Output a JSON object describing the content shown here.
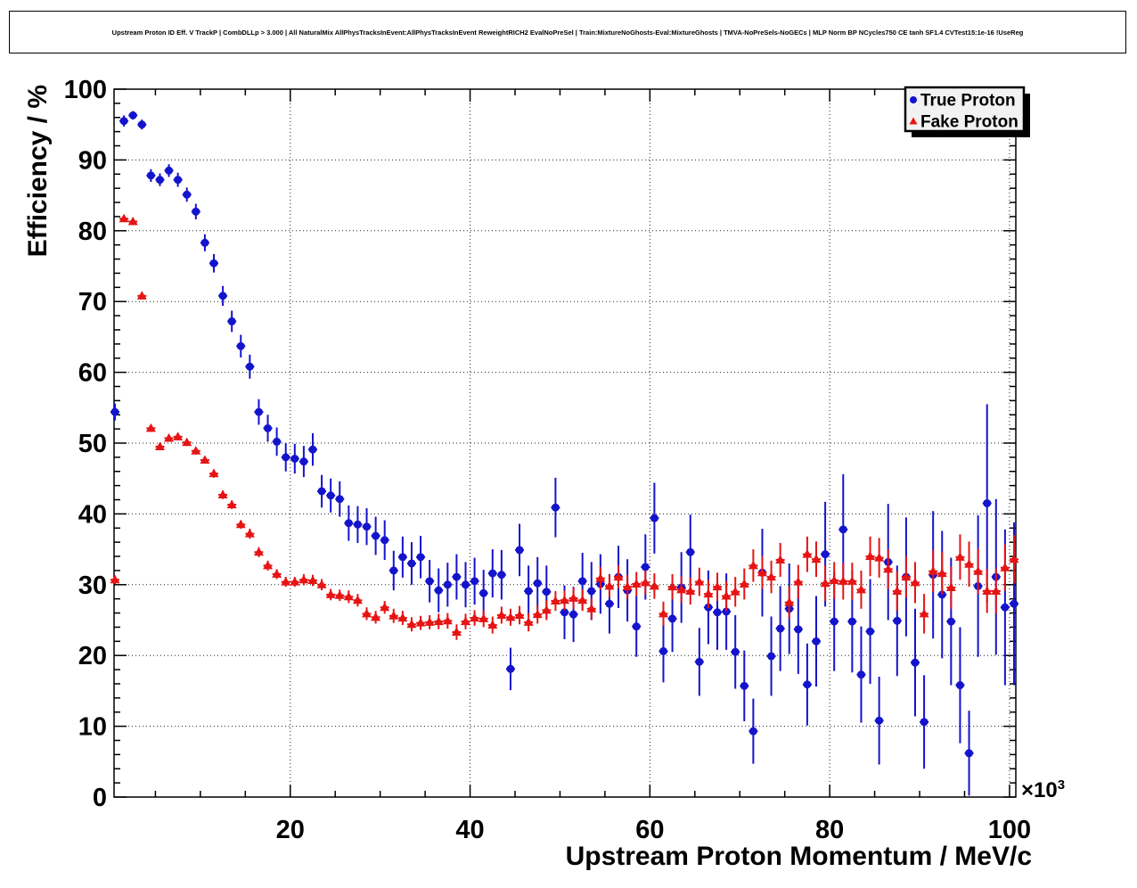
{
  "title": "Upstream Proton ID Eff. V TrackP | CombDLLp > 3.000 | All NaturalMix AllPhysTracksInEvent:AllPhysTracksInEvent ReweightRICH2 EvalNoPreSel | Train:MixtureNoGhosts-Eval:MixtureGhosts | TMVA-NoPreSels-NoGECs | MLP Norm BP NCycles750 CE tanh SF1.4 CVTest15:1e-16 !UseReg",
  "colors": {
    "true_proton": "#1414cc",
    "fake_proton": "#e61414",
    "frame": "#000000",
    "legend_bg": "#f2f2f2",
    "legend_shadow": "#000000",
    "background": "#ffffff"
  },
  "chart_data": {
    "type": "scatter",
    "title": "Upstream Proton ID Eff. V TrackP | CombDLLp > 3.000 | All NaturalMix AllPhysTracksInEvent:AllPhysTracksInEvent ReweightRICH2 EvalNoPreSel | Train:MixtureNoGhosts-Eval:MixtureGhosts | TMVA-NoPreSels-NoGECs | MLP Norm BP NCycles750 CE tanh SF1.4 CVTest15:1e-16 !UseReg",
    "xlabel": "Upstream Proton Momentum / MeV/c",
    "ylabel": "Efficiency / %",
    "x_axis_exponent": {
      "base": "×10",
      "exp": "3"
    },
    "xlim": [
      0.4,
      100.7
    ],
    "ylim": [
      0,
      100
    ],
    "xticks": [
      20,
      40,
      60,
      80,
      100
    ],
    "x_minor_step": 5,
    "yticks": [
      0,
      10,
      20,
      30,
      40,
      50,
      60,
      70,
      80,
      90,
      100
    ],
    "y_minor_step": 2,
    "grid": true,
    "grid_style": "dotted",
    "legend_position": "top-right",
    "series": [
      {
        "name": "True Proton",
        "marker": "circle",
        "color": "#1414cc",
        "points": [
          [
            0.5,
            54.4,
            1.2
          ],
          [
            1.5,
            95.5,
            0.8
          ],
          [
            2.5,
            96.3,
            0.6
          ],
          [
            3.5,
            95.0,
            0.7
          ],
          [
            4.5,
            87.8,
            0.9
          ],
          [
            5.5,
            87.2,
            0.9
          ],
          [
            6.5,
            88.5,
            0.9
          ],
          [
            7.5,
            87.2,
            1.0
          ],
          [
            8.5,
            85.1,
            1.0
          ],
          [
            9.5,
            82.7,
            1.1
          ],
          [
            10.5,
            78.3,
            1.2
          ],
          [
            11.5,
            75.4,
            1.3
          ],
          [
            12.5,
            70.8,
            1.4
          ],
          [
            13.5,
            67.2,
            1.5
          ],
          [
            14.5,
            63.7,
            1.6
          ],
          [
            15.5,
            60.8,
            1.7
          ],
          [
            16.5,
            54.4,
            1.8
          ],
          [
            17.5,
            52.1,
            1.9
          ],
          [
            18.5,
            50.2,
            2.0
          ],
          [
            19.5,
            48.0,
            2.0
          ],
          [
            20.5,
            47.8,
            2.1
          ],
          [
            21.5,
            47.4,
            2.2
          ],
          [
            22.5,
            49.1,
            2.3
          ],
          [
            23.5,
            43.2,
            2.3
          ],
          [
            24.5,
            42.6,
            2.4
          ],
          [
            25.5,
            42.1,
            2.5
          ],
          [
            26.5,
            38.7,
            2.5
          ],
          [
            27.5,
            38.5,
            2.6
          ],
          [
            28.5,
            38.2,
            2.6
          ],
          [
            29.5,
            36.9,
            2.7
          ],
          [
            30.5,
            36.3,
            2.8
          ],
          [
            31.5,
            32.0,
            2.8
          ],
          [
            32.5,
            33.9,
            2.9
          ],
          [
            33.5,
            33.0,
            3.0
          ],
          [
            34.5,
            33.9,
            3.0
          ],
          [
            35.5,
            30.5,
            3.0
          ],
          [
            36.5,
            29.2,
            3.1
          ],
          [
            37.5,
            30.0,
            3.1
          ],
          [
            38.5,
            31.1,
            3.2
          ],
          [
            39.5,
            30.0,
            3.2
          ],
          [
            40.5,
            30.5,
            3.3
          ],
          [
            41.5,
            28.8,
            3.3
          ],
          [
            42.5,
            31.6,
            3.4
          ],
          [
            43.5,
            31.4,
            3.5
          ],
          [
            44.5,
            18.1,
            3.0
          ],
          [
            45.5,
            34.9,
            3.7
          ],
          [
            46.5,
            29.1,
            3.6
          ],
          [
            47.5,
            30.2,
            3.7
          ],
          [
            48.5,
            29.0,
            3.7
          ],
          [
            49.5,
            40.9,
            4.2
          ],
          [
            50.5,
            26.1,
            3.8
          ],
          [
            51.5,
            25.8,
            3.9
          ],
          [
            52.5,
            30.5,
            4.0
          ],
          [
            53.5,
            29.1,
            4.1
          ],
          [
            54.5,
            30.1,
            4.2
          ],
          [
            55.5,
            27.3,
            4.2
          ],
          [
            56.5,
            31.1,
            4.4
          ],
          [
            57.5,
            29.2,
            4.4
          ],
          [
            58.5,
            24.1,
            4.3
          ],
          [
            59.5,
            32.5,
            4.6
          ],
          [
            60.5,
            39.4,
            5.0
          ],
          [
            61.5,
            20.6,
            4.4
          ],
          [
            62.5,
            25.2,
            4.7
          ],
          [
            63.5,
            29.6,
            5.0
          ],
          [
            64.5,
            34.6,
            5.3
          ],
          [
            65.5,
            19.1,
            4.8
          ],
          [
            66.5,
            26.8,
            5.2
          ],
          [
            67.5,
            26.1,
            5.3
          ],
          [
            68.5,
            26.2,
            5.4
          ],
          [
            69.5,
            20.5,
            5.2
          ],
          [
            70.5,
            15.7,
            5.0
          ],
          [
            71.5,
            9.3,
            4.6
          ],
          [
            72.5,
            31.7,
            6.2
          ],
          [
            73.5,
            19.9,
            5.6
          ],
          [
            74.5,
            23.8,
            6.0
          ],
          [
            75.5,
            26.6,
            6.4
          ],
          [
            76.5,
            23.7,
            6.3
          ],
          [
            77.5,
            15.9,
            5.8
          ],
          [
            78.5,
            22.0,
            6.4
          ],
          [
            79.5,
            34.3,
            7.4
          ],
          [
            80.5,
            24.8,
            7.0
          ],
          [
            81.5,
            37.8,
            7.8
          ],
          [
            82.5,
            24.8,
            7.2
          ],
          [
            83.5,
            17.3,
            6.8
          ],
          [
            84.5,
            23.4,
            7.4
          ],
          [
            85.5,
            10.8,
            6.2
          ],
          [
            86.5,
            33.2,
            8.2
          ],
          [
            87.5,
            24.9,
            7.8
          ],
          [
            88.5,
            31.1,
            8.4
          ],
          [
            89.5,
            19.0,
            7.6
          ],
          [
            90.5,
            10.6,
            6.6
          ],
          [
            91.5,
            31.4,
            9.0
          ],
          [
            92.5,
            28.6,
            9.0
          ],
          [
            93.5,
            24.8,
            9.0
          ],
          [
            94.5,
            15.8,
            8.2
          ],
          [
            95.5,
            6.2,
            6.0
          ],
          [
            96.5,
            29.8,
            10.0
          ],
          [
            97.5,
            41.5,
            14.0
          ],
          [
            98.5,
            31.1,
            11.0
          ],
          [
            99.5,
            26.8,
            11.0
          ],
          [
            100.5,
            27.3,
            11.5
          ]
        ]
      },
      {
        "name": "Fake Proton",
        "marker": "triangle",
        "color": "#e61414",
        "points": [
          [
            0.5,
            30.7,
            0.6
          ],
          [
            1.5,
            81.7,
            0.4
          ],
          [
            2.5,
            81.3,
            0.4
          ],
          [
            3.5,
            70.8,
            0.5
          ],
          [
            4.5,
            52.1,
            0.5
          ],
          [
            5.5,
            49.5,
            0.5
          ],
          [
            6.5,
            50.7,
            0.5
          ],
          [
            7.5,
            50.9,
            0.5
          ],
          [
            8.5,
            50.1,
            0.5
          ],
          [
            9.5,
            48.9,
            0.5
          ],
          [
            10.5,
            47.6,
            0.5
          ],
          [
            11.5,
            45.7,
            0.6
          ],
          [
            12.5,
            42.7,
            0.6
          ],
          [
            13.5,
            41.3,
            0.6
          ],
          [
            14.5,
            38.5,
            0.6
          ],
          [
            15.5,
            37.2,
            0.7
          ],
          [
            16.5,
            34.6,
            0.7
          ],
          [
            17.5,
            32.7,
            0.7
          ],
          [
            18.5,
            31.5,
            0.7
          ],
          [
            19.5,
            30.4,
            0.7
          ],
          [
            20.5,
            30.4,
            0.7
          ],
          [
            21.5,
            30.7,
            0.8
          ],
          [
            22.5,
            30.6,
            0.8
          ],
          [
            23.5,
            30.0,
            0.8
          ],
          [
            24.5,
            28.6,
            0.8
          ],
          [
            25.5,
            28.5,
            0.8
          ],
          [
            26.5,
            28.3,
            0.9
          ],
          [
            27.5,
            27.8,
            0.9
          ],
          [
            28.5,
            25.9,
            0.9
          ],
          [
            29.5,
            25.4,
            0.9
          ],
          [
            30.5,
            26.8,
            0.9
          ],
          [
            31.5,
            25.6,
            1.0
          ],
          [
            32.5,
            25.3,
            1.0
          ],
          [
            33.5,
            24.4,
            1.0
          ],
          [
            34.5,
            24.6,
            1.0
          ],
          [
            35.5,
            24.7,
            1.0
          ],
          [
            36.5,
            24.8,
            1.1
          ],
          [
            37.5,
            24.9,
            1.1
          ],
          [
            38.5,
            23.3,
            1.1
          ],
          [
            39.5,
            24.8,
            1.1
          ],
          [
            40.5,
            25.3,
            1.1
          ],
          [
            41.5,
            25.2,
            1.2
          ],
          [
            42.5,
            24.3,
            1.2
          ],
          [
            43.5,
            25.7,
            1.2
          ],
          [
            44.5,
            25.4,
            1.2
          ],
          [
            45.5,
            25.7,
            1.3
          ],
          [
            46.5,
            24.7,
            1.3
          ],
          [
            47.5,
            25.8,
            1.3
          ],
          [
            48.5,
            26.4,
            1.4
          ],
          [
            49.5,
            27.7,
            1.4
          ],
          [
            50.5,
            27.8,
            1.4
          ],
          [
            51.5,
            28.1,
            1.5
          ],
          [
            52.5,
            27.8,
            1.5
          ],
          [
            53.5,
            26.6,
            1.5
          ],
          [
            54.5,
            30.9,
            1.6
          ],
          [
            55.5,
            29.8,
            1.6
          ],
          [
            56.5,
            31.1,
            1.6
          ],
          [
            57.5,
            29.7,
            1.7
          ],
          [
            58.5,
            30.1,
            1.7
          ],
          [
            59.5,
            30.3,
            1.7
          ],
          [
            60.5,
            29.8,
            1.8
          ],
          [
            61.5,
            25.9,
            1.7
          ],
          [
            62.5,
            29.7,
            1.8
          ],
          [
            63.5,
            29.3,
            1.9
          ],
          [
            64.5,
            29.1,
            1.9
          ],
          [
            65.5,
            30.4,
            2.0
          ],
          [
            66.5,
            28.7,
            2.0
          ],
          [
            67.5,
            29.7,
            2.0
          ],
          [
            68.5,
            28.4,
            2.1
          ],
          [
            69.5,
            29.0,
            2.1
          ],
          [
            70.5,
            30.1,
            2.2
          ],
          [
            71.5,
            32.7,
            2.3
          ],
          [
            72.5,
            31.7,
            2.3
          ],
          [
            73.5,
            31.1,
            2.3
          ],
          [
            74.5,
            33.5,
            2.4
          ],
          [
            75.5,
            27.5,
            2.3
          ],
          [
            76.5,
            30.4,
            2.4
          ],
          [
            77.5,
            34.3,
            2.5
          ],
          [
            78.5,
            33.6,
            2.5
          ],
          [
            79.5,
            30.2,
            2.5
          ],
          [
            80.5,
            30.6,
            2.6
          ],
          [
            81.5,
            30.5,
            2.6
          ],
          [
            82.5,
            30.5,
            2.6
          ],
          [
            83.5,
            29.3,
            2.7
          ],
          [
            84.5,
            34.0,
            2.8
          ],
          [
            85.5,
            33.8,
            2.8
          ],
          [
            86.5,
            32.2,
            2.8
          ],
          [
            87.5,
            29.1,
            2.8
          ],
          [
            88.5,
            31.1,
            2.9
          ],
          [
            89.5,
            30.3,
            2.9
          ],
          [
            90.5,
            25.9,
            2.8
          ],
          [
            91.5,
            31.9,
            3.0
          ],
          [
            92.5,
            31.6,
            3.0
          ],
          [
            93.5,
            29.6,
            3.0
          ],
          [
            94.5,
            33.9,
            3.2
          ],
          [
            95.5,
            32.9,
            3.2
          ],
          [
            96.5,
            31.9,
            3.2
          ],
          [
            97.5,
            29.1,
            3.1
          ],
          [
            98.5,
            29.1,
            3.2
          ],
          [
            99.5,
            32.4,
            3.3
          ],
          [
            100.5,
            33.6,
            3.4
          ]
        ]
      }
    ]
  }
}
